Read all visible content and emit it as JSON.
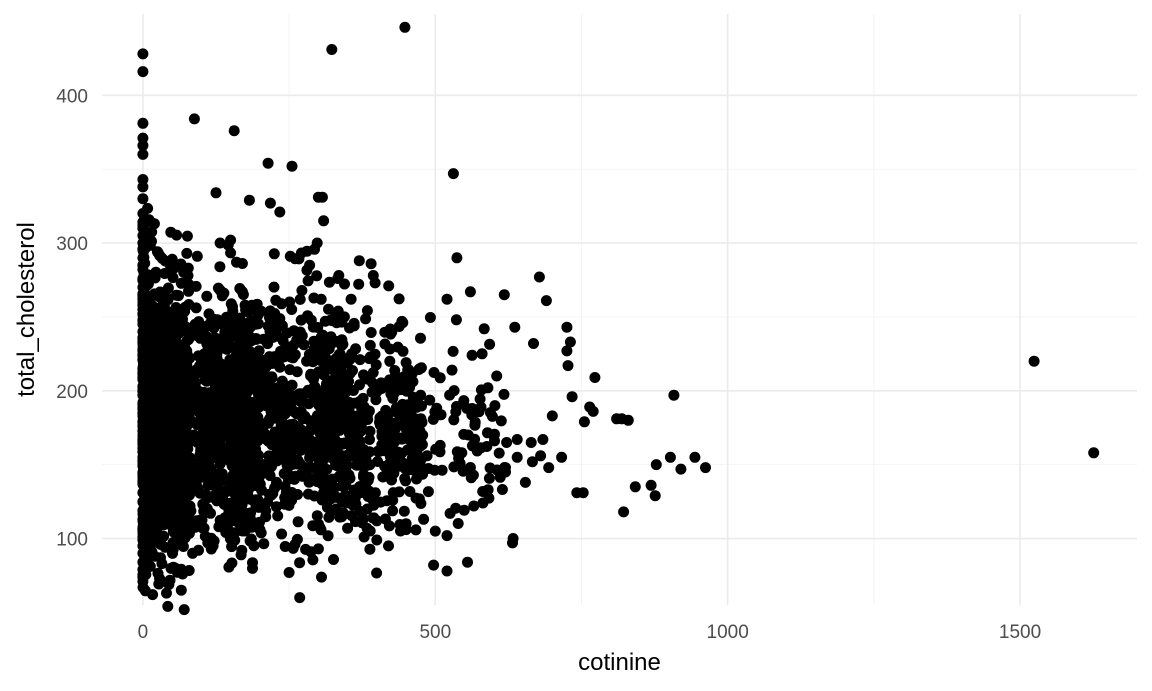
{
  "chart_data": {
    "type": "scatter",
    "xlabel": "cotinine",
    "ylabel": "total_cholesterol",
    "xlim": [
      -70,
      1700
    ],
    "ylim": [
      55,
      455
    ],
    "x_ticks": [
      0,
      500,
      1000,
      1500
    ],
    "x_tick_labels": [
      "0",
      "500",
      "1000",
      "1500"
    ],
    "y_ticks": [
      100,
      200,
      300,
      400
    ],
    "y_tick_labels": [
      "100",
      "200",
      "300",
      "400"
    ],
    "x_minor_ticks": [
      250,
      750,
      1250
    ],
    "y_minor_ticks": [
      150,
      250,
      350
    ],
    "grid": true,
    "legend": "none",
    "point_color": "#000000",
    "background": "#ffffff",
    "series": [
      {
        "x": [
          448,
          323,
          0,
          0,
          88,
          156,
          0,
          0,
          0,
          0,
          0,
          0,
          0,
          0,
          0,
          0,
          0,
          0,
          0,
          0,
          0,
          0,
          0,
          0,
          0,
          0,
          0,
          0,
          0,
          0,
          0,
          0,
          0,
          0,
          0,
          0,
          0,
          0,
          0,
          0,
          0,
          0,
          0,
          0,
          0,
          0,
          0,
          0,
          0,
          0,
          0,
          0,
          0,
          0,
          0,
          0,
          0,
          0,
          0,
          0,
          0,
          0,
          0,
          0,
          0,
          0,
          0,
          0,
          0,
          0,
          531,
          214,
          255,
          125,
          307,
          300,
          182,
          218,
          234,
          309,
          298,
          537,
          50,
          93,
          132,
          150,
          160,
          252,
          285,
          335,
          560,
          397,
          370,
          394,
          356,
          333,
          618,
          563,
          536,
          678,
          520,
          636,
          690,
          668,
          725,
          731,
          725,
          580,
          605,
          590,
          727,
          773,
          764,
          908,
          734,
          770,
          810,
          830,
          819,
          755,
          700,
          742,
          684,
          640,
          664,
          640,
          622,
          680,
          716,
          654,
          620,
          944,
          902,
          962,
          878,
          869,
          842,
          822,
          920,
          876,
          753,
          694,
          666,
          620,
          633,
          632,
          1524,
          1626,
          520,
          497,
          555,
          520,
          500,
          400,
          420,
          450,
          480,
          30,
          55,
          65,
          85,
          50,
          250,
          20,
          30,
          95,
          120,
          150,
          200,
          260,
          300,
          350,
          400,
          450,
          180,
          130,
          15,
          25,
          40
        ],
        "y": [
          446,
          431,
          428,
          416,
          384,
          376,
          381,
          371,
          366,
          360,
          343,
          338,
          330,
          320,
          312,
          305,
          296,
          290,
          282,
          276,
          270,
          265,
          258,
          252,
          245,
          240,
          233,
          227,
          221,
          215,
          209,
          203,
          197,
          191,
          185,
          179,
          173,
          167,
          161,
          155,
          149,
          143,
          137,
          131,
          125,
          119,
          113,
          107,
          101,
          95,
          90,
          84,
          79,
          75,
          71,
          310,
          300,
          285,
          275,
          262,
          255,
          248,
          236,
          224,
          212,
          200,
          188,
          176,
          164,
          152,
          347,
          354,
          352,
          334,
          331,
          331,
          329,
          327,
          321,
          315,
          300,
          290,
          289,
          291,
          300,
          302,
          287,
          291,
          285,
          278,
          267,
          273,
          288,
          278,
          262,
          276,
          265,
          224,
          248,
          277,
          262,
          243,
          261,
          232,
          243,
          233,
          227,
          225,
          210,
          202,
          217,
          209,
          189,
          197,
          196,
          186,
          181,
          180,
          181,
          179,
          183,
          131,
          167,
          155,
          165,
          167,
          165,
          156,
          155,
          138,
          145,
          155,
          155,
          148,
          150,
          136,
          135,
          118,
          147,
          129,
          131,
          148,
          152,
          148,
          100,
          97,
          220,
          158,
          78,
          82,
          84,
          102,
          105,
          99,
          95,
          110,
          113,
          87,
          80,
          78,
          90,
          92,
          77,
          88,
          96,
          92,
          95,
          103,
          106,
          96,
          93,
          107,
          112,
          106,
          116,
          108,
          150,
          140,
          128
        ]
      }
    ],
    "dense_regions": [
      {
        "x_range": [
          0,
          80
        ],
        "y_range": [
          95,
          275
        ],
        "count": 850
      },
      {
        "x_range": [
          0,
          200
        ],
        "y_range": [
          110,
          255
        ],
        "count": 700
      },
      {
        "x_range": [
          100,
          350
        ],
        "y_range": [
          115,
          250
        ],
        "count": 650
      },
      {
        "x_range": [
          300,
          480
        ],
        "y_range": [
          120,
          230
        ],
        "count": 320
      },
      {
        "x_range": [
          420,
          620
        ],
        "y_range": [
          120,
          215
        ],
        "count": 110
      },
      {
        "x_range": [
          0,
          450
        ],
        "y_range": [
          105,
          270
        ],
        "count": 300
      }
    ]
  }
}
